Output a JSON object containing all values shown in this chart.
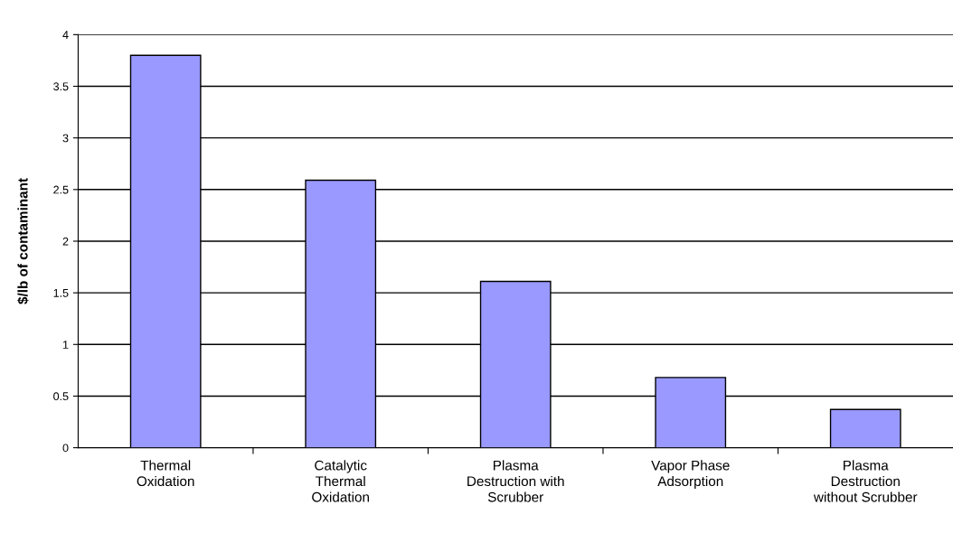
{
  "chart_data": {
    "type": "bar",
    "ylabel": "$/lb of contaminant",
    "categories": [
      "Thermal\nOxidation",
      "Catalytic\nThermal\nOxidation",
      "Plasma\nDestruction with\nScrubber",
      "Vapor Phase\nAdsorption",
      "Plasma\nDestruction\nwithout Scrubber"
    ],
    "values": [
      3.8,
      2.59,
      1.61,
      0.68,
      0.37
    ],
    "color": "#9999ff",
    "ylim": [
      0,
      4
    ],
    "yticks": [
      0,
      0.5,
      1,
      1.5,
      2,
      2.5,
      3,
      3.5,
      4
    ],
    "grid": "y"
  }
}
